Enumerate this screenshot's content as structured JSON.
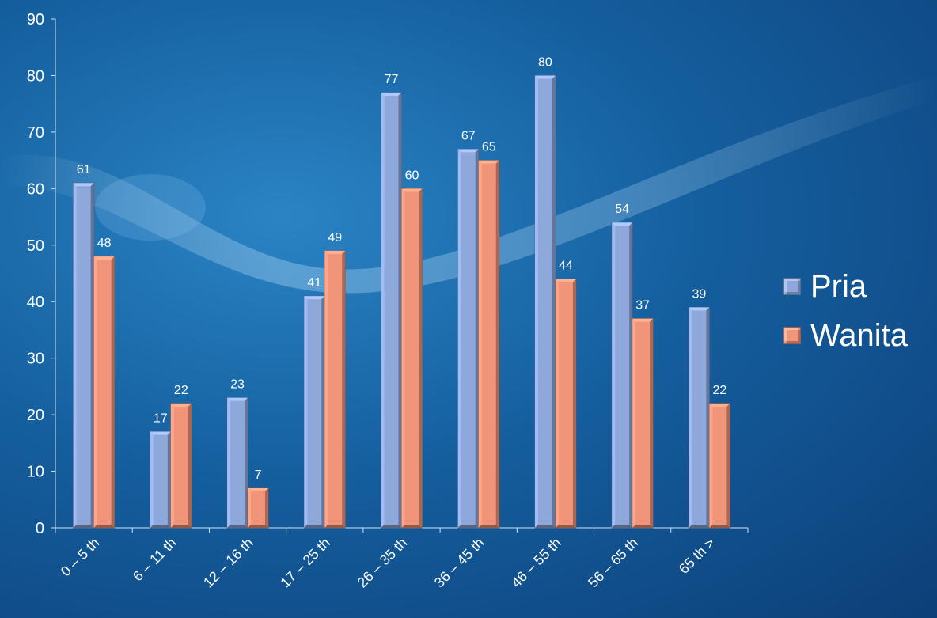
{
  "chart_data": {
    "type": "bar",
    "categories": [
      "0 – 5 th",
      "6 – 11 th",
      "12 – 16 th",
      "17 – 25 th",
      "26 – 35 th",
      "36 – 45 th",
      "46 – 55 th",
      "56 – 65 th",
      "65 th >"
    ],
    "series": [
      {
        "name": "Pria",
        "values": [
          61,
          17,
          23,
          41,
          77,
          67,
          80,
          54,
          39
        ],
        "color": "#8fa8dc"
      },
      {
        "name": "Wanita",
        "values": [
          48,
          22,
          7,
          49,
          60,
          65,
          44,
          37,
          22
        ],
        "color": "#f0947a"
      }
    ],
    "ylim": [
      0,
      90
    ],
    "yticks": [
      0,
      10,
      20,
      30,
      40,
      50,
      60,
      70,
      80,
      90
    ],
    "legend_position": "right",
    "data_labels": true,
    "grid": false
  }
}
